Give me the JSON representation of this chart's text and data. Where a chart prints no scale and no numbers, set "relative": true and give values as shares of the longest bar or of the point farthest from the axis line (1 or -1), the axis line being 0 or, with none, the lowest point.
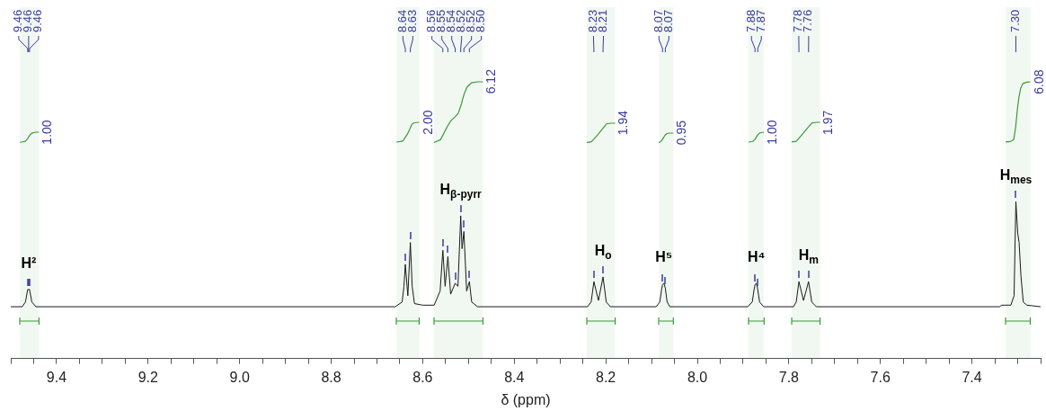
{
  "chart_data": {
    "type": "line",
    "relative": true,
    "xlabel": "δ (ppm)",
    "xlim": [
      9.5,
      7.25
    ],
    "xticks": [
      {
        "value": 9.5,
        "label": null
      },
      {
        "value": 9.45,
        "label": null
      },
      9.4,
      {
        "value": 9.35,
        "label": null
      },
      {
        "value": 9.3,
        "label": null
      },
      {
        "value": 9.25,
        "label": null
      },
      9.2,
      {
        "value": 9.15,
        "label": null
      },
      {
        "value": 9.1,
        "label": null
      },
      {
        "value": 9.05,
        "label": null
      },
      {
        "value": 9.0,
        "label": "9.0"
      },
      {
        "value": 8.95,
        "label": null
      },
      {
        "value": 8.9,
        "label": null
      },
      {
        "value": 8.85,
        "label": null
      },
      8.8,
      {
        "value": 8.75,
        "label": null
      },
      {
        "value": 8.7,
        "label": null
      },
      {
        "value": 8.65,
        "label": null
      },
      8.6,
      {
        "value": 8.55,
        "label": null
      },
      {
        "value": 8.5,
        "label": null
      },
      {
        "value": 8.45,
        "label": null
      },
      8.4,
      {
        "value": 8.35,
        "label": null
      },
      {
        "value": 8.3,
        "label": null
      },
      {
        "value": 8.25,
        "label": null
      },
      8.2,
      {
        "value": 8.15,
        "label": null
      },
      {
        "value": 8.1,
        "label": null
      },
      {
        "value": 8.05,
        "label": null
      },
      {
        "value": 8.0,
        "label": "8.0"
      },
      {
        "value": 7.95,
        "label": null
      },
      {
        "value": 7.9,
        "label": null
      },
      {
        "value": 7.85,
        "label": null
      },
      7.8,
      {
        "value": 7.75,
        "label": null
      },
      {
        "value": 7.7,
        "label": null
      },
      {
        "value": 7.65,
        "label": null
      },
      7.6,
      {
        "value": 7.55,
        "label": null
      },
      {
        "value": 7.5,
        "label": null
      },
      {
        "value": 7.45,
        "label": null
      },
      7.4,
      {
        "value": 7.35,
        "label": null
      },
      {
        "value": 7.3,
        "label": null
      },
      {
        "value": 7.25,
        "label": null
      }
    ],
    "series": [
      {
        "color": "#1a1a1a",
        "x": [
          9.5,
          9.475,
          9.468,
          9.463,
          9.461,
          9.459,
          9.454,
          9.445,
          8.66,
          8.645,
          8.641,
          8.638,
          8.6325,
          8.627,
          8.623,
          8.618,
          8.6,
          8.575,
          8.562,
          8.556,
          8.551,
          8.545,
          8.539,
          8.529,
          8.523,
          8.517,
          8.514,
          8.51,
          8.504,
          8.498,
          8.493,
          8.48,
          8.24,
          8.232,
          8.226,
          8.216,
          8.206,
          8.199,
          8.19,
          8.09,
          8.082,
          8.078,
          8.076,
          8.073,
          8.07,
          8.066,
          8.06,
          7.89,
          7.88,
          7.876,
          7.874,
          7.871,
          7.868,
          7.864,
          7.855,
          7.79,
          7.784,
          7.778,
          7.768,
          7.757,
          7.75,
          7.74,
          7.34,
          7.335,
          7.328,
          7.315,
          7.308,
          7.304,
          7.3,
          7.297,
          7.293,
          7.288,
          7.28,
          7.25
        ],
        "values": [
          0.33,
          0.33,
          0.36,
          0.44,
          0.44,
          0.44,
          0.36,
          0.33,
          0.33,
          0.36,
          0.46,
          0.6,
          0.4,
          0.74,
          0.46,
          0.35,
          0.34,
          0.34,
          0.43,
          0.69,
          0.46,
          0.65,
          0.41,
          0.48,
          0.46,
          0.91,
          0.7,
          0.81,
          0.43,
          0.49,
          0.36,
          0.33,
          0.33,
          0.36,
          0.49,
          0.37,
          0.52,
          0.36,
          0.33,
          0.33,
          0.36,
          0.44,
          0.47,
          0.48,
          0.45,
          0.36,
          0.33,
          0.33,
          0.36,
          0.44,
          0.47,
          0.48,
          0.44,
          0.36,
          0.33,
          0.33,
          0.36,
          0.49,
          0.37,
          0.49,
          0.36,
          0.33,
          0.33,
          0.34,
          0.34,
          0.34,
          0.4,
          1.0,
          0.8,
          0.74,
          0.53,
          0.36,
          0.34,
          0.33
        ]
      }
    ],
    "bands": [
      {
        "axis": "x",
        "from": 9.48,
        "to": 9.438,
        "label": "1.00",
        "color": "#3a9a3a"
      },
      {
        "axis": "x",
        "from": 8.657,
        "to": 8.607,
        "label": "2.00",
        "color": "#3a9a3a"
      },
      {
        "axis": "x",
        "from": 8.576,
        "to": 8.469,
        "label": "6.12",
        "color": "#3a9a3a"
      },
      {
        "axis": "x",
        "from": 8.242,
        "to": 8.18,
        "label": "1.94",
        "color": "#3a9a3a"
      },
      {
        "axis": "x",
        "from": 8.084,
        "to": 8.052,
        "label": "0.95",
        "color": "#3a9a3a"
      },
      {
        "axis": "x",
        "from": 7.889,
        "to": 7.855,
        "label": "1.00",
        "color": "#3a9a3a"
      },
      {
        "axis": "x",
        "from": 7.794,
        "to": 7.732,
        "label": "1.97",
        "color": "#3a9a3a"
      },
      {
        "axis": "x",
        "from": 7.326,
        "to": 7.272,
        "label": "6.08",
        "color": "#3a9a3a"
      }
    ],
    "annotations": [
      {
        "text": "9.46",
        "x": 9.463
      },
      {
        "text": "9.46",
        "x": 9.461
      },
      {
        "text": "9.46",
        "x": 9.459
      },
      {
        "text": "8.64",
        "x": 8.638
      },
      {
        "text": "8.63",
        "x": 8.627
      },
      {
        "text": "8.56",
        "x": 8.556
      },
      {
        "text": "8.55",
        "x": 8.545
      },
      {
        "text": "8.54",
        "x": 8.529
      },
      {
        "text": "8.52",
        "x": 8.517
      },
      {
        "text": "8.52",
        "x": 8.51
      },
      {
        "text": "8.50",
        "x": 8.498
      },
      {
        "text": "8.23",
        "x": 8.226
      },
      {
        "text": "8.21",
        "x": 8.206
      },
      {
        "text": "8.07",
        "x": 8.076
      },
      {
        "text": "8.07",
        "x": 8.07
      },
      {
        "text": "7.88",
        "x": 7.874
      },
      {
        "text": "7.87",
        "x": 7.868
      },
      {
        "text": "7.78",
        "x": 7.778
      },
      {
        "text": "7.76",
        "x": 7.757
      },
      {
        "text": "7.30",
        "x": 7.304
      },
      {
        "text": "H²",
        "x": 9.461,
        "y": 0.44
      },
      {
        "text": "H$_{β-pyrr}$",
        "x": 8.517,
        "y": 0.91
      },
      {
        "text": "H$_{o}$",
        "x": 8.206,
        "y": 0.52
      },
      {
        "text": "H⁵",
        "x": 8.073,
        "y": 0.48
      },
      {
        "text": "H⁴",
        "x": 7.871,
        "y": 0.48
      },
      {
        "text": "H$_{m}$",
        "x": 7.757,
        "y": 0.49
      },
      {
        "text": "H$_{mes}$",
        "x": 7.304,
        "y": 1.0
      }
    ]
  }
}
